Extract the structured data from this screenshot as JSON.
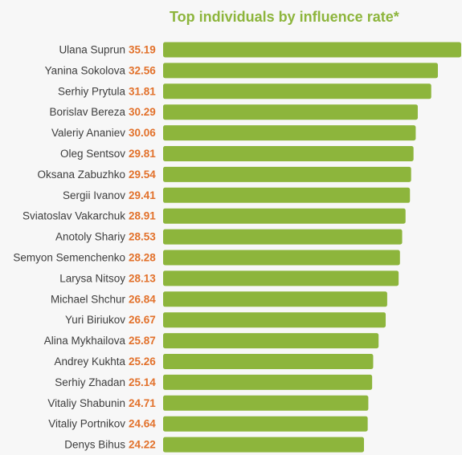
{
  "chart_data": {
    "type": "bar",
    "orientation": "horizontal",
    "title": "Top individuals by influence rate*",
    "categories": [
      "Ulana Suprun",
      "Yanina Sokolova",
      "Serhiy Prytula",
      "Borislav Bereza",
      "Valeriy Ananiev",
      "Oleg Sentsov",
      "Oksana Zabuzhko",
      "Sergii Ivanov",
      "Sviatoslav Vakarchuk",
      "Anotoly Shariy",
      "Semyon Semenchenko",
      "Larysa Nitsoy",
      "Michael Shchur",
      "Yuri Biriukov",
      "Alina Mykhailova",
      "Andrey Kukhta",
      "Serhiy Zhadan",
      "Vitaliy Shabunin",
      "Vitaliy Portnikov",
      "Denys Bihus"
    ],
    "values": [
      35.19,
      32.56,
      31.81,
      30.29,
      30.06,
      29.81,
      29.54,
      29.41,
      28.91,
      28.53,
      28.28,
      28.13,
      26.84,
      26.67,
      25.87,
      25.26,
      25.14,
      24.71,
      24.64,
      24.22
    ],
    "value_labels": [
      "35.19",
      "32.56",
      "31.81",
      "30.29",
      "30.06",
      "29.81",
      "29.54",
      "29.41",
      "28.91",
      "28.53",
      "28.28",
      "28.13",
      "26.84",
      "26.67",
      "25.87",
      "25.26",
      "25.14",
      "24.71",
      "24.64",
      "24.22"
    ],
    "grid": false,
    "legend": "none",
    "colors": {
      "bar": "#8db53c",
      "value": "#e2712b",
      "name": "#3d3d3d",
      "title": "#8db53c"
    }
  }
}
